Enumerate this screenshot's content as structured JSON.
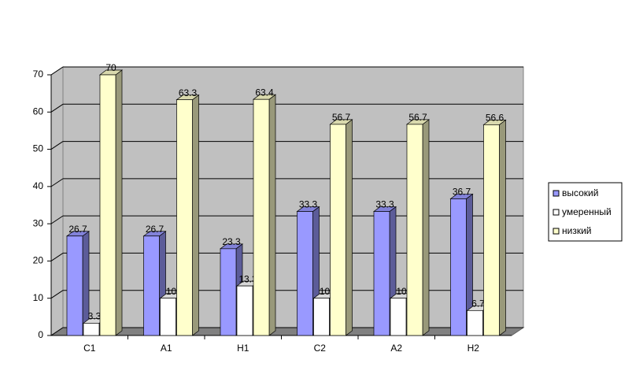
{
  "chart_data": {
    "type": "bar3d",
    "categories": [
      "С1",
      "А1",
      "Н1",
      "С2",
      "А2",
      "Н2"
    ],
    "series": [
      {
        "name": "высокий",
        "color": "#9999ff",
        "values": [
          26.7,
          26.7,
          23.3,
          33.3,
          33.3,
          36.7
        ]
      },
      {
        "name": "умеренный",
        "color": "#ffffff",
        "values": [
          3.3,
          10,
          13.3,
          10,
          10,
          6.7
        ]
      },
      {
        "name": "низкий",
        "color": "#ffffcc",
        "values": [
          70,
          63.3,
          63.4,
          56.7,
          56.7,
          56.6
        ]
      }
    ],
    "ylim": [
      0,
      70
    ],
    "yticks": [
      0,
      10,
      20,
      30,
      40,
      50,
      60,
      70
    ],
    "grid": true,
    "legend": "right"
  }
}
